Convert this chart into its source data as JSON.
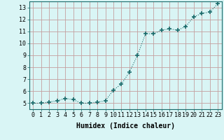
{
  "x": [
    0,
    1,
    2,
    3,
    4,
    5,
    6,
    7,
    8,
    9,
    10,
    11,
    12,
    13,
    14,
    15,
    16,
    17,
    18,
    19,
    20,
    21,
    22,
    23
  ],
  "y": [
    5.0,
    5.0,
    5.1,
    5.2,
    5.4,
    5.3,
    5.0,
    5.0,
    5.1,
    5.2,
    6.1,
    6.6,
    7.6,
    9.0,
    10.8,
    10.8,
    11.1,
    11.2,
    11.1,
    11.4,
    12.2,
    12.5,
    12.6,
    13.3
  ],
  "line_color": "#1a6b6b",
  "marker": "+",
  "marker_size": 4,
  "bg_color": "#d9f5f5",
  "grid_color": "#c4a0a0",
  "xlabel": "Humidex (Indice chaleur)",
  "xlim": [
    -0.5,
    23.5
  ],
  "ylim": [
    4.5,
    13.5
  ],
  "xticks": [
    0,
    1,
    2,
    3,
    4,
    5,
    6,
    7,
    8,
    9,
    10,
    11,
    12,
    13,
    14,
    15,
    16,
    17,
    18,
    19,
    20,
    21,
    22,
    23
  ],
  "yticks": [
    5,
    6,
    7,
    8,
    9,
    10,
    11,
    12,
    13
  ],
  "xlabel_fontsize": 7,
  "tick_fontsize": 6
}
